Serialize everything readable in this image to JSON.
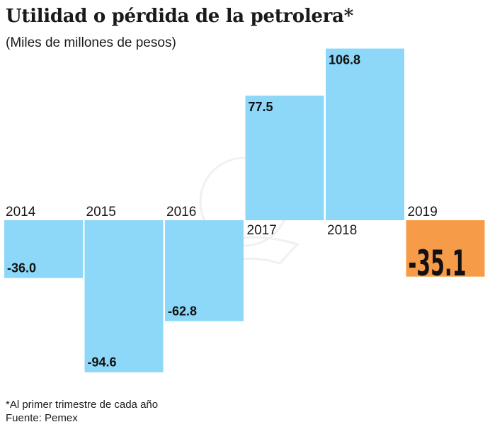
{
  "title": "Utilidad o pérdida de la petrolera*",
  "subtitle": "(Miles de millones de pesos)",
  "footnote": "*Al primer trimestre de cada año",
  "source": "Fuente: Pemex",
  "chart_data": {
    "type": "bar",
    "title": "Utilidad o pérdida de la petrolera*",
    "ylabel": "Miles de millones de pesos",
    "categories": [
      "2014",
      "2015",
      "2016",
      "2017",
      "2018",
      "2019"
    ],
    "values": [
      -36.0,
      -94.6,
      -62.8,
      77.5,
      106.8,
      -35.1
    ],
    "value_labels": [
      "-36.0",
      "-94.6",
      "-62.8",
      "77.5",
      "106.8",
      "-35.1"
    ],
    "highlight_index": 5,
    "colors": {
      "default": "#8dd8f8",
      "highlight": "#f69c48"
    },
    "ylim": [
      -100,
      110
    ],
    "grid": false,
    "legend": "none"
  }
}
